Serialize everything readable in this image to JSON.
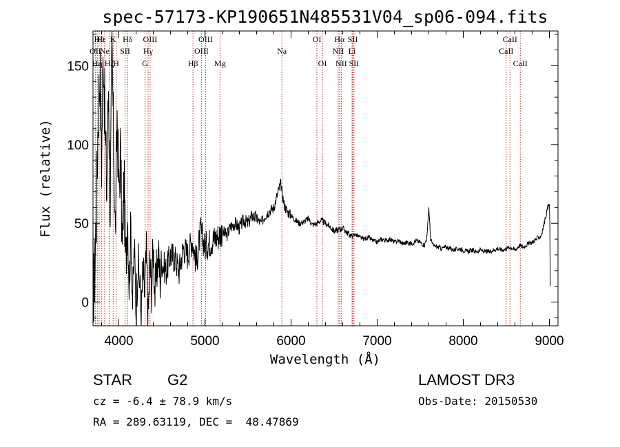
{
  "chart_data": {
    "type": "line",
    "title": "spec-57173-KP190651N485531V04_sp06-094.fits",
    "xlabel": "Wavelength (Å)",
    "ylabel": "Flux (relative)",
    "xlim": [
      3700,
      9100
    ],
    "ylim": [
      -15,
      172
    ],
    "xticks": [
      4000,
      5000,
      6000,
      7000,
      8000,
      9000
    ],
    "yticks": [
      0,
      50,
      100,
      150
    ],
    "xtick_labels": [
      "4000",
      "5000",
      "6000",
      "7000",
      "8000",
      "9000"
    ],
    "ytick_labels": [
      "0",
      "50",
      "100",
      "150"
    ],
    "series": [
      {
        "name": "flux",
        "color": "#000000",
        "x": [
          3700,
          3720,
          3740,
          3760,
          3780,
          3800,
          3820,
          3840,
          3860,
          3880,
          3900,
          3920,
          3940,
          3960,
          3980,
          4000,
          4020,
          4040,
          4060,
          4080,
          4100,
          4120,
          4140,
          4160,
          4180,
          4200,
          4220,
          4240,
          4260,
          4280,
          4300,
          4320,
          4340,
          4360,
          4380,
          4400,
          4420,
          4440,
          4460,
          4480,
          4500,
          4550,
          4600,
          4650,
          4700,
          4750,
          4800,
          4850,
          4900,
          4950,
          5000,
          5050,
          5100,
          5150,
          5200,
          5250,
          5300,
          5350,
          5400,
          5450,
          5500,
          5550,
          5600,
          5650,
          5700,
          5750,
          5800,
          5850,
          5880,
          5900,
          5920,
          5950,
          6000,
          6050,
          6100,
          6150,
          6200,
          6250,
          6300,
          6350,
          6400,
          6450,
          6500,
          6550,
          6600,
          6650,
          6700,
          6750,
          6800,
          6850,
          6900,
          6950,
          7000,
          7050,
          7100,
          7150,
          7200,
          7250,
          7300,
          7350,
          7400,
          7450,
          7500,
          7550,
          7580,
          7600,
          7620,
          7650,
          7700,
          7750,
          7800,
          7850,
          7900,
          7950,
          8000,
          8050,
          8100,
          8150,
          8200,
          8250,
          8300,
          8350,
          8400,
          8450,
          8500,
          8550,
          8600,
          8650,
          8700,
          8750,
          8800,
          8850,
          8900,
          8920,
          8940,
          8960,
          8980,
          9000,
          9005,
          9010
        ],
        "y": [
          5,
          20,
          60,
          120,
          150,
          90,
          165,
          110,
          70,
          140,
          60,
          160,
          100,
          40,
          120,
          70,
          95,
          30,
          80,
          20,
          60,
          10,
          50,
          0,
          35,
          -5,
          25,
          15,
          -10,
          20,
          5,
          30,
          -12,
          25,
          10,
          35,
          5,
          20,
          30,
          15,
          25,
          20,
          30,
          28,
          20,
          35,
          30,
          40,
          25,
          45,
          35,
          38,
          40,
          42,
          45,
          42,
          48,
          50,
          47,
          52,
          50,
          55,
          53,
          50,
          55,
          58,
          60,
          70,
          75,
          68,
          62,
          58,
          55,
          52,
          50,
          51,
          53,
          49,
          50,
          52,
          50,
          48,
          45,
          46,
          47,
          44,
          42,
          43,
          41,
          40,
          41,
          39,
          38,
          40,
          39,
          40,
          38,
          39,
          37,
          38,
          37,
          39,
          38,
          36,
          42,
          60,
          40,
          36,
          35,
          34,
          35,
          34,
          33,
          34,
          33,
          32,
          33,
          32,
          33,
          32,
          32,
          33,
          34,
          33,
          34,
          35,
          33,
          36,
          35,
          37,
          38,
          40,
          42,
          45,
          50,
          55,
          60,
          62,
          50,
          10
        ]
      }
    ],
    "line_ids": [
      {
        "label": "OII",
        "x": 3727,
        "row": 2
      },
      {
        "label": "Hη",
        "x": 3750,
        "row": 3
      },
      {
        "label": "Hθ",
        "x": 3771,
        "row": 1
      },
      {
        "label": "Hε",
        "x": 3798,
        "row": 1
      },
      {
        "label": "Ne",
        "x": 3835,
        "row": 2
      },
      {
        "label": "Hζ",
        "x": 3889,
        "row": 3
      },
      {
        "label": "K",
        "x": 3934,
        "row": 1
      },
      {
        "label": "H",
        "x": 3969,
        "row": 3
      },
      {
        "label": "Hδ",
        "x": 4102,
        "row": 1
      },
      {
        "label": "SII",
        "x": 4072,
        "row": 2
      },
      {
        "label": "G",
        "x": 4305,
        "row": 3
      },
      {
        "label": "OIII",
        "x": 4363,
        "row": 1
      },
      {
        "label": "Hγ",
        "x": 4340,
        "row": 2
      },
      {
        "label": "Hβ",
        "x": 4861,
        "row": 3
      },
      {
        "label": "OIII",
        "x": 5007,
        "row": 1
      },
      {
        "label": "OIII",
        "x": 4959,
        "row": 2
      },
      {
        "label": "Mg",
        "x": 5175,
        "row": 3
      },
      {
        "label": "Na",
        "x": 5894,
        "row": 2
      },
      {
        "label": "OI",
        "x": 6300,
        "row": 1
      },
      {
        "label": "OI",
        "x": 6364,
        "row": 3
      },
      {
        "label": "Hα",
        "x": 6563,
        "row": 1
      },
      {
        "label": "NII",
        "x": 6548,
        "row": 2
      },
      {
        "label": "NII",
        "x": 6583,
        "row": 3
      },
      {
        "label": "SII",
        "x": 6716,
        "row": 1
      },
      {
        "label": "Li",
        "x": 6708,
        "row": 2
      },
      {
        "label": "SII",
        "x": 6731,
        "row": 3
      },
      {
        "label": "CaII",
        "x": 8542,
        "row": 1
      },
      {
        "label": "CaII",
        "x": 8498,
        "row": 2
      },
      {
        "label": "CaII",
        "x": 8662,
        "row": 3
      }
    ],
    "line_color": "#cc2222"
  },
  "info": {
    "class": "STAR",
    "subclass": "G2",
    "survey": "LAMOST DR3",
    "cz": "cz = -6.4 ± 78.9 km/s",
    "obsdate": "Obs-Date: 20150530",
    "radec": "RA = 289.63119, DEC =  48.47869"
  }
}
